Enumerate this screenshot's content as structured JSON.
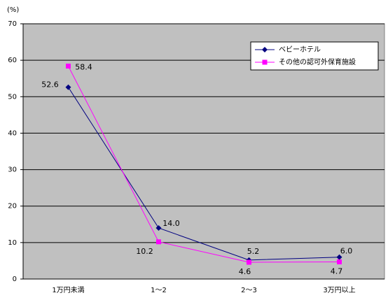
{
  "chart_data": {
    "type": "line",
    "y_label": "(%)",
    "categories": [
      "1万円未満",
      "1～2",
      "2～3",
      "3万円以上"
    ],
    "series": [
      {
        "name": "ベビーホテル",
        "color": "#000080",
        "marker": "diamond",
        "values": [
          52.6,
          14.0,
          5.2,
          6.0
        ],
        "value_labels": [
          "52.6",
          "14.0",
          "5.2",
          "6.0"
        ]
      },
      {
        "name": "その他の認可外保育施設",
        "color": "#ff00ff",
        "marker": "square",
        "values": [
          58.4,
          10.2,
          4.6,
          4.7
        ],
        "value_labels": [
          "58.4",
          "10.2",
          "4.6",
          "4.7"
        ]
      }
    ],
    "ylim": [
      0,
      70
    ],
    "yticks": [
      0,
      10,
      20,
      30,
      40,
      50,
      60,
      70
    ],
    "grid": true,
    "legend": "upper right"
  }
}
